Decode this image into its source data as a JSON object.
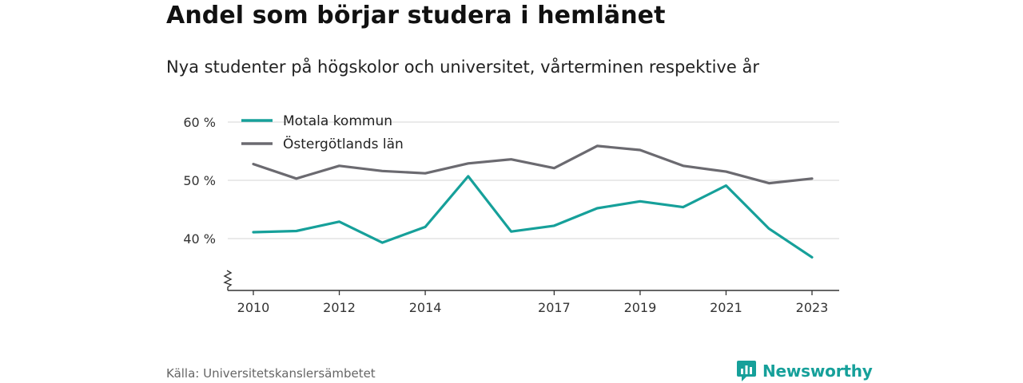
{
  "title": "Andel som börjar studera i hemlänet",
  "subtitle": "Nya studenter på högskolor och universitet, vårterminen respektive år",
  "source": "Källa: Universitetskanslersämbetet",
  "brand": "Newsworthy",
  "colors": {
    "accent": "#16a09a",
    "series_1": "#16a09a",
    "series_2": "#6b6a70",
    "grid": "#dddddd"
  },
  "chart_data": {
    "type": "line",
    "x": [
      2010,
      2011,
      2012,
      2013,
      2014,
      2015,
      2016,
      2017,
      2018,
      2019,
      2020,
      2021,
      2022,
      2023
    ],
    "x_tick_labels": [
      "2010",
      "2012",
      "2014",
      "2017",
      "2019",
      "2021",
      "2023"
    ],
    "y_tick_labels": [
      "60 %",
      "50 %",
      "40 %"
    ],
    "y_ticks": [
      60,
      50,
      40
    ],
    "ylim": [
      31.5,
      61
    ],
    "y_axis_break": true,
    "grid": true,
    "legend_position": "top-left",
    "series": [
      {
        "name": "Motala kommun",
        "color": "#16a09a",
        "values": [
          41.1,
          41.3,
          42.9,
          39.3,
          42.0,
          50.7,
          41.2,
          42.2,
          45.2,
          46.4,
          45.4,
          49.1,
          41.7,
          36.8
        ]
      },
      {
        "name": "Östergötlands län",
        "color": "#6b6a70",
        "values": [
          52.8,
          50.3,
          52.5,
          51.6,
          51.2,
          52.9,
          53.6,
          52.1,
          55.9,
          55.2,
          52.5,
          51.5,
          49.5,
          50.3
        ]
      }
    ]
  }
}
